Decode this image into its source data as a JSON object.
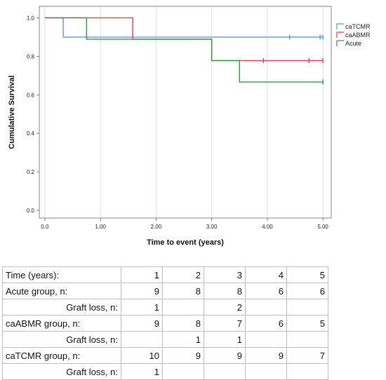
{
  "chart_data": {
    "type": "line",
    "subtype": "kaplan-meier step",
    "title": "",
    "xlabel": "Time to event (years)",
    "ylabel": "Cumulative Survival",
    "xlim": [
      -0.1,
      5.15
    ],
    "ylim": [
      -0.04,
      1.06
    ],
    "x_ticks": [
      "0.0",
      "1.00",
      "2.00",
      "3.00",
      "4.00",
      "5.00"
    ],
    "y_ticks": [
      "0.0",
      "0.2",
      "0.4",
      "0.6",
      "0.8",
      "1.0"
    ],
    "grid": "vertical",
    "legend_position": "top-right",
    "series": [
      {
        "name": "caTCMR",
        "color": "#4f9fd8",
        "steps": [
          [
            0,
            1.0
          ],
          [
            0.33,
            0.9
          ],
          [
            5.0,
            0.9
          ]
        ],
        "censored": [
          [
            4.4,
            0.9
          ],
          [
            4.95,
            0.9
          ],
          [
            5.0,
            0.9
          ]
        ]
      },
      {
        "name": "caABMR",
        "color": "#e33a56",
        "steps": [
          [
            0,
            1.0
          ],
          [
            1.58,
            0.889
          ],
          [
            3.0,
            0.778
          ],
          [
            5.0,
            0.778
          ]
        ],
        "censored": [
          [
            3.93,
            0.778
          ],
          [
            4.75,
            0.778
          ],
          [
            5.0,
            0.778
          ]
        ]
      },
      {
        "name": "Acute",
        "color": "#2e9a3c",
        "steps": [
          [
            0,
            1.0
          ],
          [
            0.75,
            0.889
          ],
          [
            3.0,
            0.778
          ],
          [
            3.5,
            0.667
          ],
          [
            5.0,
            0.667
          ]
        ],
        "censored": [
          [
            5.0,
            0.667
          ]
        ]
      }
    ]
  },
  "risk_table": {
    "rows": [
      {
        "label": "Time (years):",
        "indent": false,
        "values": [
          "1",
          "2",
          "3",
          "4",
          "5"
        ]
      },
      {
        "label": "Acute group, n:",
        "indent": false,
        "values": [
          "9",
          "8",
          "8",
          "6",
          "6"
        ]
      },
      {
        "label": "Graft loss, n:",
        "indent": true,
        "values": [
          "1",
          "",
          "2",
          "",
          ""
        ]
      },
      {
        "label": "caABMR group, n:",
        "indent": false,
        "values": [
          "9",
          "8",
          "7",
          "6",
          "5"
        ]
      },
      {
        "label": "Graft loss, n:",
        "indent": true,
        "values": [
          "",
          "1",
          "1",
          "",
          ""
        ]
      },
      {
        "label": "caTCMR group, n:",
        "indent": false,
        "values": [
          "10",
          "9",
          "9",
          "9",
          "7"
        ]
      },
      {
        "label": "Graft loss, n:",
        "indent": true,
        "values": [
          "1",
          "",
          "",
          "",
          ""
        ]
      }
    ]
  }
}
